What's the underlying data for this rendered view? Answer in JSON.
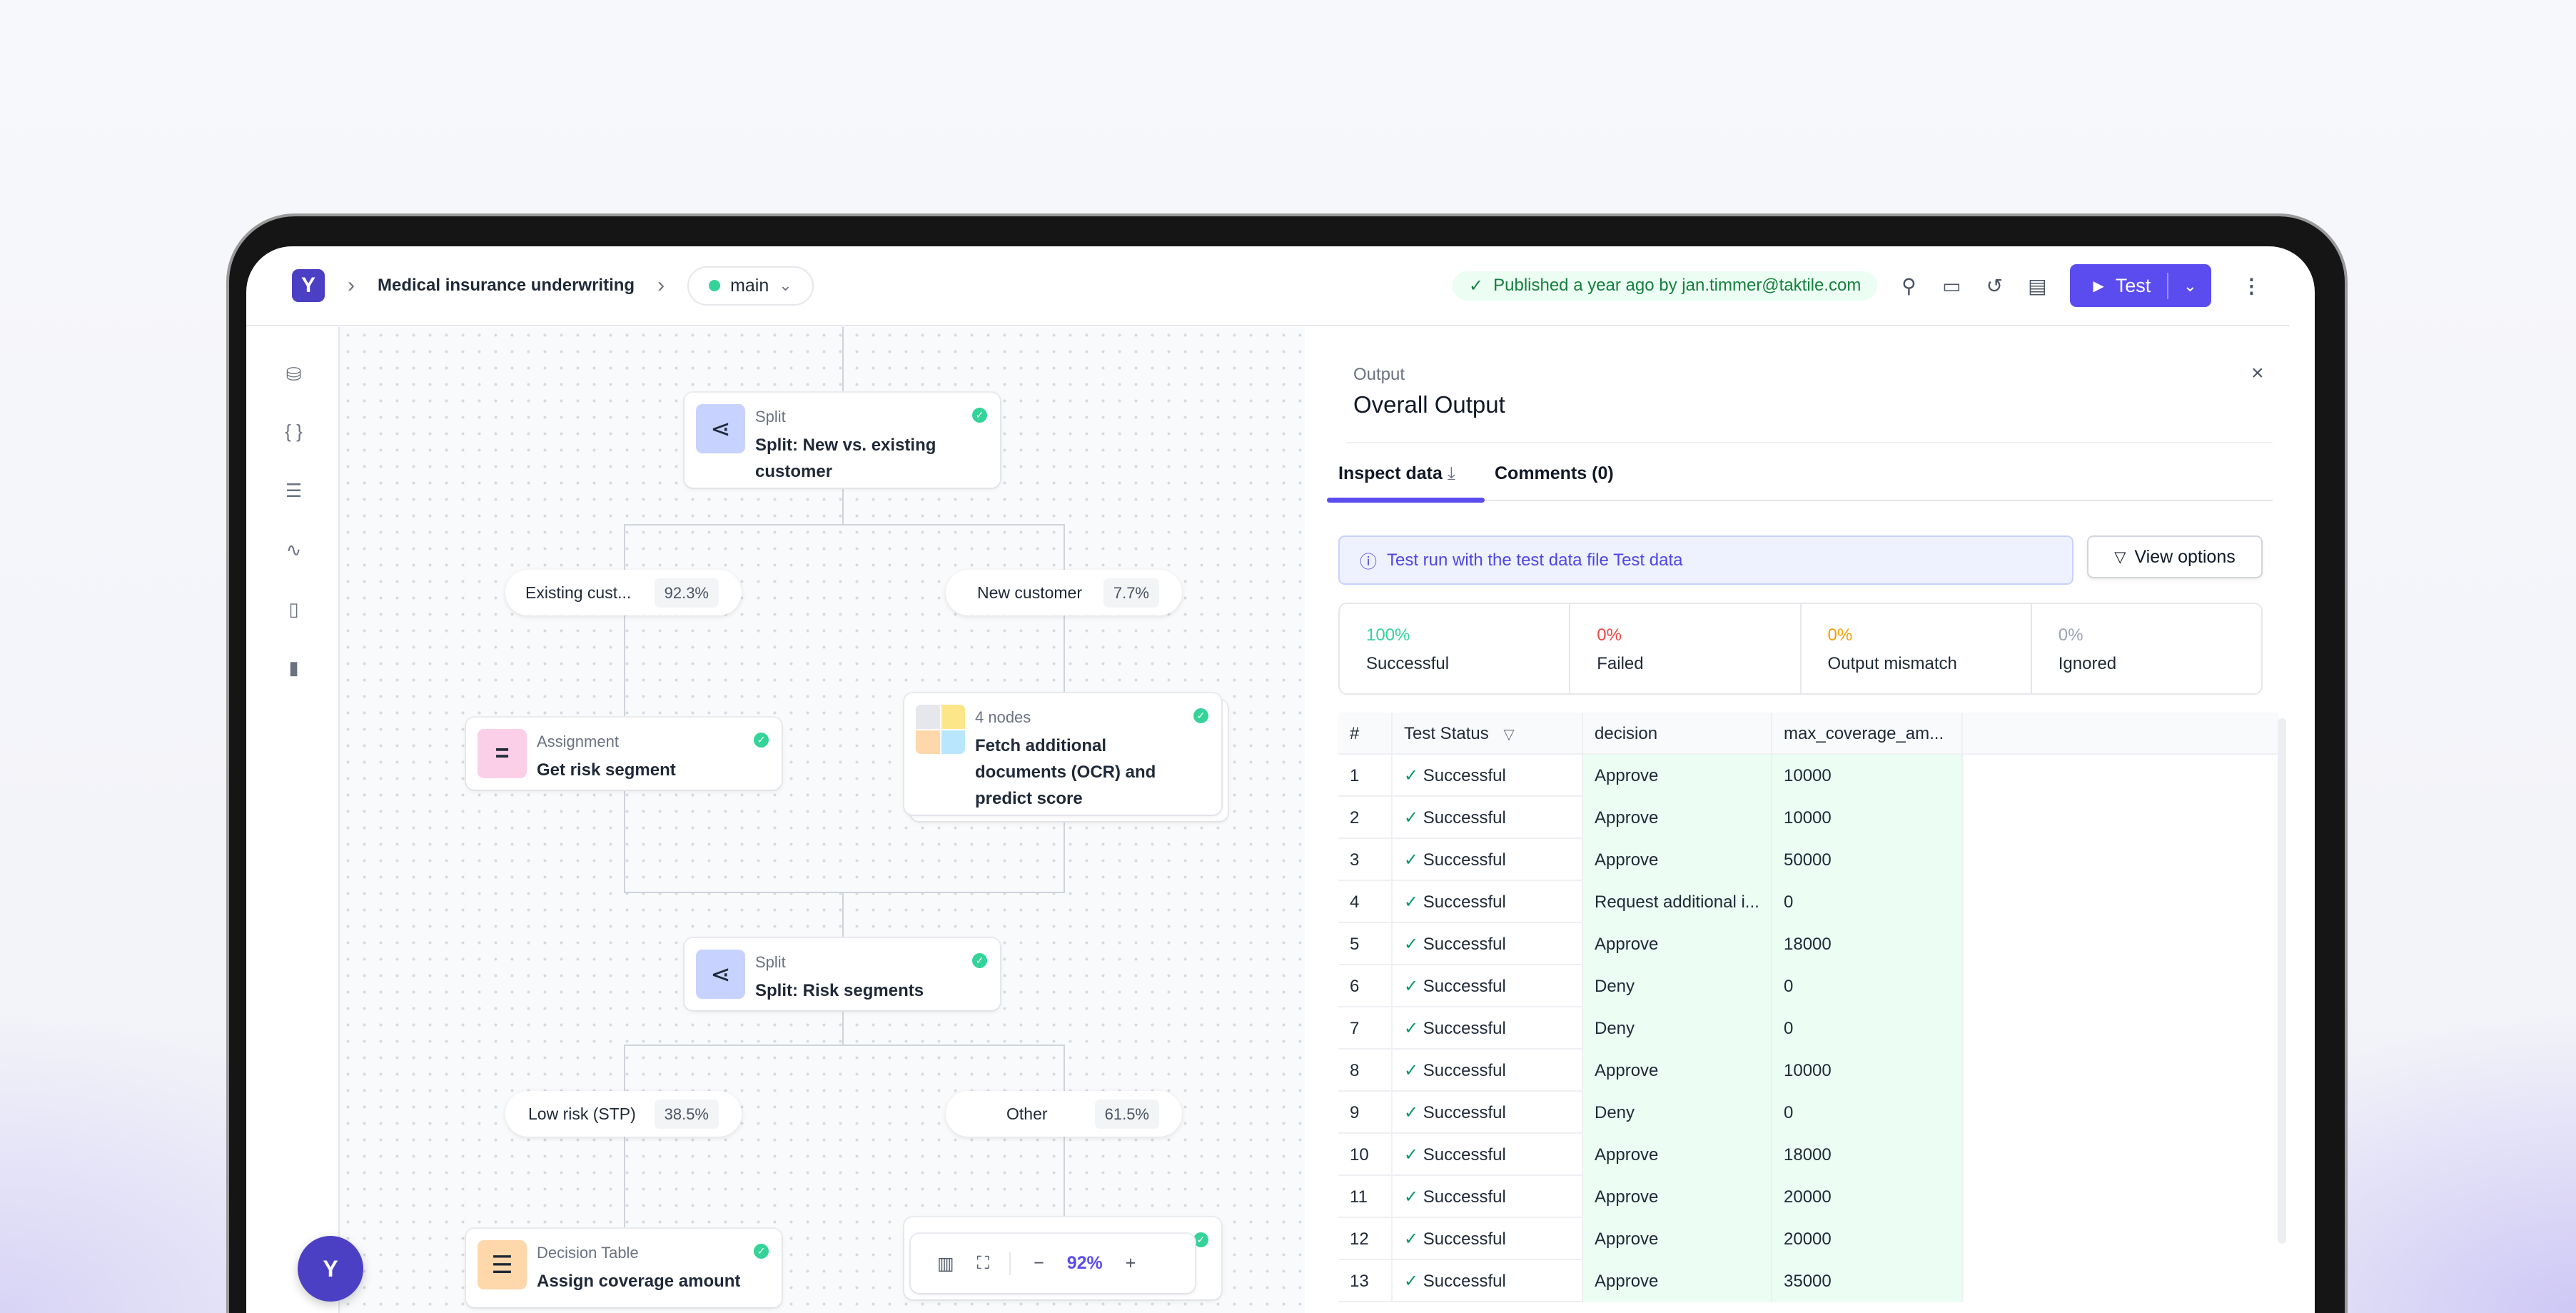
{
  "header": {
    "logo_letter": "Y",
    "title": "Medical insurance underwriting",
    "branch": "main",
    "published": "Published a year ago by jan.timmer@taktile.com",
    "test_label": "Test",
    "icons": [
      "search-icon",
      "comment-icon",
      "history-icon",
      "notes-icon",
      "more-icon"
    ]
  },
  "sidebar": {
    "icons": [
      "database-icon",
      "braces-icon",
      "sliders-icon",
      "pulse-icon",
      "book-icon",
      "chart-icon"
    ]
  },
  "canvas": {
    "split1": {
      "type": "Split",
      "name": "Split: New vs. existing customer"
    },
    "branch_existing": {
      "label": "Existing cust...",
      "pct": "92.3%"
    },
    "branch_new": {
      "label": "New customer",
      "pct": "7.7%"
    },
    "assignment": {
      "type": "Assignment",
      "name": "Get risk segment"
    },
    "group": {
      "type": "4 nodes",
      "name": "Fetch additional documents (OCR) and predict score"
    },
    "split2": {
      "type": "Split",
      "name": "Split: Risk segments"
    },
    "branch_low": {
      "label": "Low risk (STP)",
      "pct": "38.5%"
    },
    "branch_other": {
      "label": "Other",
      "pct": "61.5%"
    },
    "decision_table": {
      "type": "Decision Table",
      "name": "Assign coverage amount"
    },
    "zoom": {
      "level": "92%",
      "minus": "−",
      "plus": "+"
    }
  },
  "panel": {
    "kicker": "Output",
    "title": "Overall Output",
    "tabs": [
      {
        "label": "Inspect data",
        "active": true
      },
      {
        "label": "Comments (0)"
      }
    ],
    "info": "Test run with the test data file Test data",
    "view_options": "View options",
    "stats": [
      {
        "value": "100%",
        "label": "Successful",
        "color": "#34d399"
      },
      {
        "value": "0%",
        "label": "Failed",
        "color": "#ef4444"
      },
      {
        "value": "0%",
        "label": "Output mismatch",
        "color": "#f59e0b"
      },
      {
        "value": "0%",
        "label": "Ignored",
        "color": "#9ca3af"
      }
    ],
    "table": {
      "columns": [
        "#",
        "Test Status",
        "decision",
        "max_coverage_am..."
      ],
      "rows": [
        [
          "1",
          "Successful",
          "Approve",
          "10000"
        ],
        [
          "2",
          "Successful",
          "Approve",
          "10000"
        ],
        [
          "3",
          "Successful",
          "Approve",
          "50000"
        ],
        [
          "4",
          "Successful",
          "Request additional i...",
          "0"
        ],
        [
          "5",
          "Successful",
          "Approve",
          "18000"
        ],
        [
          "6",
          "Successful",
          "Deny",
          "0"
        ],
        [
          "7",
          "Successful",
          "Deny",
          "0"
        ],
        [
          "8",
          "Successful",
          "Approve",
          "10000"
        ],
        [
          "9",
          "Successful",
          "Deny",
          "0"
        ],
        [
          "10",
          "Successful",
          "Approve",
          "18000"
        ],
        [
          "11",
          "Successful",
          "Approve",
          "20000"
        ],
        [
          "12",
          "Successful",
          "Approve",
          "20000"
        ],
        [
          "13",
          "Successful",
          "Approve",
          "35000"
        ]
      ]
    }
  },
  "colors": {
    "accent": "#5b4cef",
    "success": "#34d399"
  }
}
